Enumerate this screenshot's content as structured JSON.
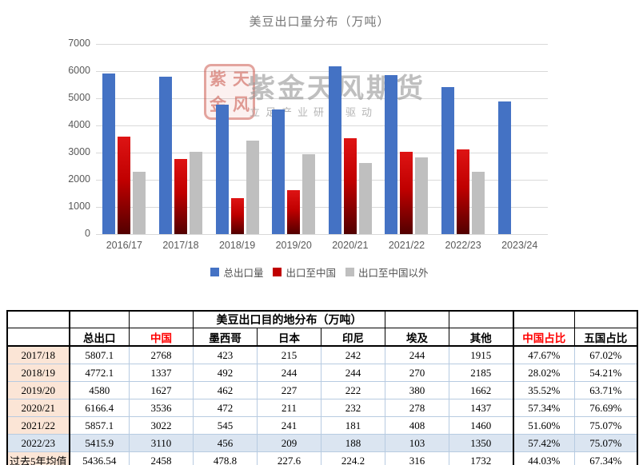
{
  "chart_data": {
    "type": "bar",
    "title": "美豆出口量分布（万吨）",
    "categories": [
      "2016/17",
      "2017/18",
      "2018/19",
      "2019/20",
      "2020/21",
      "2021/22",
      "2022/23",
      "2023/24"
    ],
    "series": [
      {
        "name": "总出口量",
        "color": "#4472C4",
        "values": [
          5900,
          5807,
          4772,
          4580,
          6166,
          5857,
          5416,
          4870
        ]
      },
      {
        "name": "出口至中国",
        "color": "#C00000",
        "gradient": [
          "#DE1414",
          "#C00000",
          "#520000"
        ],
        "values": [
          3600,
          2768,
          1337,
          1627,
          3536,
          3022,
          3110,
          null
        ]
      },
      {
        "name": "出口至中国以外",
        "color": "#BFBFBF",
        "values": [
          2300,
          3039,
          3435,
          2953,
          2630,
          2835,
          2306,
          null
        ]
      }
    ],
    "ylim": [
      0,
      7000
    ],
    "yticks": [
      0,
      1000,
      2000,
      3000,
      4000,
      5000,
      6000,
      7000
    ],
    "grid": true,
    "legend_position": "bottom"
  },
  "watermark": {
    "seal_chars": "紫天金风",
    "brand": "紫金天风期货",
    "slogan": "立足产业研究驱动"
  },
  "table": {
    "title": "美豆出口目的地分布（万吨）",
    "columns": [
      "",
      "总出口",
      "中国",
      "墨西哥",
      "日本",
      "印尼",
      "埃及",
      "其他",
      "中国占比",
      "五国占比"
    ],
    "rows": [
      {
        "label": "2017/18",
        "values": [
          "5807.1",
          "2768",
          "423",
          "215",
          "242",
          "244",
          "1915",
          "47.67%",
          "67.02%"
        ]
      },
      {
        "label": "2018/19",
        "values": [
          "4772.1",
          "1337",
          "492",
          "244",
          "244",
          "270",
          "2185",
          "28.02%",
          "54.21%"
        ]
      },
      {
        "label": "2019/20",
        "values": [
          "4580",
          "1627",
          "462",
          "227",
          "222",
          "380",
          "1662",
          "35.52%",
          "63.71%"
        ]
      },
      {
        "label": "2020/21",
        "values": [
          "6166.4",
          "3536",
          "472",
          "211",
          "232",
          "278",
          "1437",
          "57.34%",
          "76.69%"
        ]
      },
      {
        "label": "2021/22",
        "values": [
          "5857.1",
          "3022",
          "545",
          "241",
          "181",
          "408",
          "1460",
          "51.60%",
          "75.07%"
        ]
      },
      {
        "label": "2022/23",
        "values": [
          "5415.9",
          "3110",
          "456",
          "209",
          "188",
          "103",
          "1350",
          "57.42%",
          "75.07%"
        ],
        "highlight": true
      },
      {
        "label": "过去5年均值",
        "values": [
          "5436.54",
          "2458",
          "478.8",
          "227.6",
          "224.2",
          "316",
          "1732",
          "44.03%",
          "67.34%"
        ]
      }
    ],
    "colors": {
      "year_bg": "#FBE5D6",
      "highlight_bg": "#DBE5F1",
      "grid_line": "#B7CBE1",
      "red_text": "#FF0000"
    }
  }
}
